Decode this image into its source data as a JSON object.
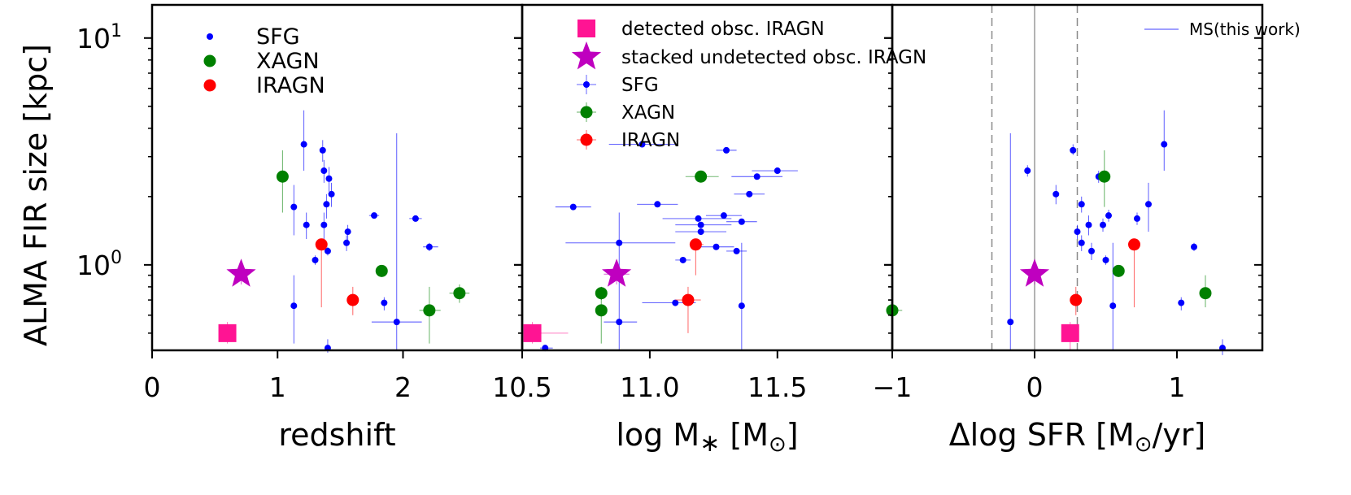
{
  "chart_data": {
    "type": "scatter",
    "ylabel": "ALMA FIR size [kpc]",
    "yscale": "log",
    "ylim": [
      0.42,
      14
    ],
    "yticks": [
      {
        "value": 1,
        "label": "10",
        "exp": "0"
      },
      {
        "value": 10,
        "label": "10",
        "exp": "1"
      }
    ],
    "colors": {
      "SFG": "#0000ff",
      "XAGN": "#008000",
      "IRAGN": "#ff0000",
      "detected": "#ff1493",
      "stacked": "#bf00bf"
    },
    "panels": [
      {
        "name": "redshift",
        "xlabel": "redshift",
        "xlim": [
          0,
          2.95
        ],
        "xticks": [
          {
            "value": 0,
            "label": "0"
          },
          {
            "value": 1,
            "label": "1"
          },
          {
            "value": 2,
            "label": "2"
          }
        ],
        "legend": {
          "position": "top-left",
          "entries": [
            {
              "label": "SFG",
              "series": "SFG"
            },
            {
              "label": "XAGN",
              "series": "XAGN"
            },
            {
              "label": "IRAGN",
              "series": "IRAGN"
            }
          ]
        },
        "series": [
          {
            "name": "SFG",
            "points": [
              {
                "x": 1.21,
                "y": 3.4,
                "ylo": 2.6,
                "yhi": 4.8
              },
              {
                "x": 1.36,
                "y": 3.2,
                "ylo": 2.85,
                "yhi": 3.55
              },
              {
                "x": 1.37,
                "y": 2.6,
                "ylo": 2.3,
                "yhi": 2.9
              },
              {
                "x": 1.41,
                "y": 2.4,
                "ylo": 2.1,
                "yhi": 2.7
              },
              {
                "x": 1.43,
                "y": 2.05,
                "ylo": 1.8,
                "yhi": 2.3
              },
              {
                "x": 1.13,
                "y": 1.8,
                "ylo": 1.35,
                "yhi": 2.25
              },
              {
                "x": 1.39,
                "y": 1.85,
                "ylo": 1.6,
                "yhi": 2.05
              },
              {
                "x": 1.23,
                "y": 1.5,
                "ylo": 1.3,
                "yhi": 1.7
              },
              {
                "x": 1.37,
                "y": 1.5,
                "ylo": 1.3,
                "yhi": 1.7
              },
              {
                "x": 1.56,
                "y": 1.4,
                "ylo": 1.25,
                "yhi": 1.5
              },
              {
                "x": 1.55,
                "y": 1.25,
                "ylo": 1.15,
                "yhi": 1.35
              },
              {
                "x": 1.77,
                "y": 1.65,
                "ylo": 1.6,
                "yhi": 1.7,
                "xlo": 1.73,
                "xhi": 1.81
              },
              {
                "x": 2.1,
                "y": 1.6,
                "ylo": 1.55,
                "yhi": 1.65,
                "xlo": 2.05,
                "xhi": 2.15
              },
              {
                "x": 2.21,
                "y": 1.2,
                "ylo": 1.15,
                "yhi": 1.25,
                "xlo": 2.16,
                "xhi": 2.28
              },
              {
                "x": 1.3,
                "y": 1.05,
                "ylo": 1.0,
                "yhi": 1.1
              },
              {
                "x": 1.4,
                "y": 1.15,
                "ylo": 1.1,
                "yhi": 1.2
              },
              {
                "x": 1.13,
                "y": 0.66,
                "ylo": 0.45,
                "yhi": 0.9
              },
              {
                "x": 1.85,
                "y": 0.68,
                "ylo": 0.63,
                "yhi": 0.72
              },
              {
                "x": 1.95,
                "y": 0.56,
                "ylo": 0.42,
                "yhi": 3.8,
                "xlo": 1.75,
                "xhi": 2.15
              },
              {
                "x": 1.4,
                "y": 0.43,
                "ylo": 0.41,
                "yhi": 0.47
              }
            ]
          },
          {
            "name": "XAGN",
            "points": [
              {
                "x": 1.04,
                "y": 2.45,
                "ylo": 1.7,
                "yhi": 3.2
              },
              {
                "x": 1.83,
                "y": 0.94,
                "ylo": 0.9,
                "yhi": 0.99
              },
              {
                "x": 2.45,
                "y": 0.75,
                "ylo": 0.68,
                "yhi": 0.82,
                "xlo": 2.37,
                "xhi": 2.53
              },
              {
                "x": 2.21,
                "y": 0.63,
                "ylo": 0.45,
                "yhi": 0.8,
                "xlo": 2.13,
                "xhi": 2.3
              }
            ]
          },
          {
            "name": "IRAGN",
            "points": [
              {
                "x": 1.35,
                "y": 1.23,
                "ylo": 0.65,
                "yhi": 1.3
              },
              {
                "x": 1.6,
                "y": 0.7,
                "ylo": 0.6,
                "yhi": 0.8
              }
            ]
          },
          {
            "name": "detected",
            "points": [
              {
                "x": 0.6,
                "y": 0.5,
                "ylo": 0.45,
                "yhi": 0.56
              }
            ]
          },
          {
            "name": "stacked",
            "points": [
              {
                "x": 0.71,
                "y": 0.91,
                "ylo": 0.82,
                "yhi": 1.02
              }
            ]
          }
        ]
      },
      {
        "name": "mass",
        "xlabel": "log M",
        "xlim": [
          10.5,
          11.95
        ],
        "xticks": [
          {
            "value": 10.5,
            "label": "10.5"
          },
          {
            "value": 11.0,
            "label": "11.0"
          },
          {
            "value": 11.5,
            "label": "11.5"
          }
        ],
        "legend": {
          "position": "top-left",
          "entries": [
            {
              "label": "detected obsc. IRAGN",
              "series": "detected"
            },
            {
              "label": "stacked undetected obsc. IRAGN",
              "series": "stacked"
            },
            {
              "label": "SFG",
              "series": "SFG"
            },
            {
              "label": "XAGN",
              "series": "XAGN"
            },
            {
              "label": "IRAGN",
              "series": "IRAGN"
            }
          ]
        },
        "series": [
          {
            "name": "SFG",
            "points": [
              {
                "x": 10.97,
                "y": 3.4,
                "xlo": 10.84,
                "xhi": 11.1
              },
              {
                "x": 11.3,
                "y": 3.2,
                "xlo": 11.26,
                "xhi": 11.34
              },
              {
                "x": 11.5,
                "y": 2.6,
                "xlo": 11.4,
                "xhi": 11.58
              },
              {
                "x": 11.42,
                "y": 2.45,
                "xlo": 11.32,
                "xhi": 11.52
              },
              {
                "x": 11.39,
                "y": 2.05,
                "xlo": 11.33,
                "xhi": 11.45
              },
              {
                "x": 10.7,
                "y": 1.8,
                "xlo": 10.63,
                "xhi": 10.77
              },
              {
                "x": 11.03,
                "y": 1.85,
                "xlo": 10.95,
                "xhi": 11.11
              },
              {
                "x": 11.19,
                "y": 1.6,
                "xlo": 11.05,
                "xhi": 11.32
              },
              {
                "x": 11.2,
                "y": 1.5,
                "xlo": 11.1,
                "xhi": 11.32
              },
              {
                "x": 11.29,
                "y": 1.65,
                "xlo": 11.22,
                "xhi": 11.36
              },
              {
                "x": 11.36,
                "y": 1.55,
                "xlo": 11.3,
                "xhi": 11.42
              },
              {
                "x": 11.2,
                "y": 1.4,
                "xlo": 11.1,
                "xhi": 11.3
              },
              {
                "x": 10.88,
                "y": 1.25,
                "xlo": 10.67,
                "xhi": 11.1
              },
              {
                "x": 11.26,
                "y": 1.2,
                "xlo": 11.19,
                "xhi": 11.33
              },
              {
                "x": 11.34,
                "y": 1.15,
                "xlo": 11.3,
                "xhi": 11.38
              },
              {
                "x": 11.13,
                "y": 1.05,
                "xlo": 11.1,
                "xhi": 11.16
              },
              {
                "x": 11.1,
                "y": 0.68,
                "xlo": 10.97,
                "xhi": 11.18
              },
              {
                "x": 11.36,
                "y": 0.66,
                "ylo": 0.42,
                "yhi": 1.25
              },
              {
                "x": 10.88,
                "y": 0.56,
                "ylo": 0.42,
                "yhi": 1.7,
                "xlo": 10.82,
                "xhi": 10.95
              },
              {
                "x": 10.59,
                "y": 0.43,
                "xlo": 10.57,
                "xhi": 10.62
              }
            ]
          },
          {
            "name": "XAGN",
            "points": [
              {
                "x": 11.2,
                "y": 2.45,
                "xlo": 11.14,
                "xhi": 11.27
              },
              {
                "x": 10.81,
                "y": 0.75,
                "ylo": 0.7,
                "yhi": 0.8
              },
              {
                "x": 10.81,
                "y": 0.63,
                "ylo": 0.45,
                "yhi": 0.8
              }
            ]
          },
          {
            "name": "IRAGN",
            "points": [
              {
                "x": 11.18,
                "y": 1.23,
                "ylo": 0.9,
                "yhi": 1.3,
                "xlo": 11.16,
                "xhi": 11.21
              },
              {
                "x": 11.15,
                "y": 0.7,
                "ylo": 0.5,
                "yhi": 0.8,
                "xlo": 11.1,
                "xhi": 11.2
              }
            ]
          },
          {
            "name": "detected",
            "points": [
              {
                "x": 10.54,
                "y": 0.5,
                "ylo": 0.45,
                "yhi": 0.56,
                "xlo": 10.5,
                "xhi": 10.68
              }
            ]
          },
          {
            "name": "stacked",
            "points": [
              {
                "x": 10.87,
                "y": 0.91,
                "ylo": 0.82,
                "yhi": 1.02,
                "xlo": 10.82,
                "xhi": 10.92
              }
            ]
          }
        ]
      },
      {
        "name": "dsfr",
        "xlabel": "Δlog SFR [M",
        "xlim": [
          -1.0,
          1.6
        ],
        "xticks": [
          {
            "value": -1,
            "label": "−1"
          },
          {
            "value": 0,
            "label": "0"
          },
          {
            "value": 1,
            "label": "1"
          }
        ],
        "ms_line": {
          "label": "MS(this work)",
          "center": 0,
          "band": [
            -0.3,
            0.3
          ]
        },
        "series": [
          {
            "name": "SFG",
            "points": [
              {
                "x": 0.91,
                "y": 3.4,
                "ylo": 2.6,
                "yhi": 4.8
              },
              {
                "x": 0.27,
                "y": 3.2,
                "ylo": 3.05,
                "yhi": 3.4
              },
              {
                "x": -0.05,
                "y": 2.6,
                "ylo": 2.45,
                "yhi": 2.75
              },
              {
                "x": 0.45,
                "y": 2.45,
                "ylo": 2.3,
                "yhi": 2.6
              },
              {
                "x": 0.15,
                "y": 2.05,
                "ylo": 1.85,
                "yhi": 2.25
              },
              {
                "x": 0.8,
                "y": 1.85,
                "ylo": 1.4,
                "yhi": 2.3
              },
              {
                "x": 0.33,
                "y": 1.85,
                "ylo": 1.7,
                "yhi": 2.0
              },
              {
                "x": 0.72,
                "y": 1.6,
                "ylo": 1.5,
                "yhi": 1.7
              },
              {
                "x": 0.52,
                "y": 1.65,
                "ylo": 1.55,
                "yhi": 1.75
              },
              {
                "x": 0.38,
                "y": 1.5,
                "ylo": 1.35,
                "yhi": 1.65
              },
              {
                "x": 0.48,
                "y": 1.5,
                "ylo": 1.4,
                "yhi": 1.6
              },
              {
                "x": 0.3,
                "y": 1.4,
                "ylo": 1.3,
                "yhi": 1.5
              },
              {
                "x": 0.33,
                "y": 1.25,
                "ylo": 1.15,
                "yhi": 1.35
              },
              {
                "x": 1.12,
                "y": 1.2,
                "ylo": 1.15,
                "yhi": 1.25
              },
              {
                "x": 0.4,
                "y": 1.15,
                "ylo": 1.05,
                "yhi": 1.25
              },
              {
                "x": 0.5,
                "y": 1.05,
                "ylo": 1.0,
                "yhi": 1.1
              },
              {
                "x": 1.03,
                "y": 0.68,
                "ylo": 0.63,
                "yhi": 0.72
              },
              {
                "x": 0.55,
                "y": 0.66,
                "ylo": 0.42,
                "yhi": 1.25
              },
              {
                "x": -0.17,
                "y": 0.56,
                "ylo": 0.42,
                "yhi": 3.8
              },
              {
                "x": 1.32,
                "y": 0.43,
                "ylo": 0.4,
                "yhi": 0.47
              }
            ]
          },
          {
            "name": "XAGN",
            "points": [
              {
                "x": 0.49,
                "y": 2.45,
                "ylo": 1.8,
                "yhi": 3.2
              },
              {
                "x": 0.59,
                "y": 0.94,
                "ylo": 0.9,
                "yhi": 0.99
              },
              {
                "x": 1.2,
                "y": 0.75,
                "ylo": 0.65,
                "yhi": 0.9
              },
              {
                "x": -1.0,
                "y": 0.63,
                "xlo": -1.0,
                "xhi": -0.93
              }
            ]
          },
          {
            "name": "IRAGN",
            "points": [
              {
                "x": 0.7,
                "y": 1.23,
                "ylo": 0.65,
                "yhi": 1.3
              },
              {
                "x": 0.29,
                "y": 0.7,
                "ylo": 0.6,
                "yhi": 0.8
              }
            ]
          },
          {
            "name": "detected",
            "points": [
              {
                "x": 0.25,
                "y": 0.5,
                "ylo": 0.42,
                "yhi": 0.56
              }
            ]
          },
          {
            "name": "stacked",
            "points": [
              {
                "x": 0.0,
                "y": 0.91,
                "ylo": 0.82,
                "yhi": 1.02
              }
            ]
          }
        ]
      }
    ]
  }
}
